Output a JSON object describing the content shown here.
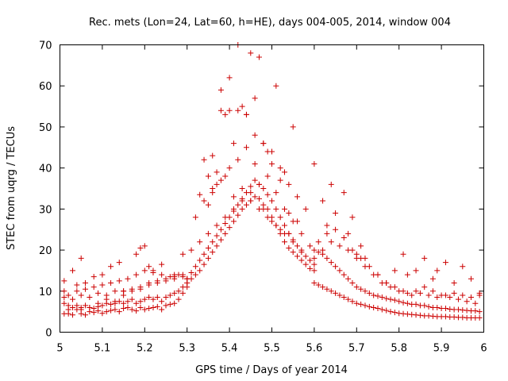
{
  "chart_data": {
    "type": "scatter",
    "title": "Rec. mets (Lon=24, Lat=60, h=HE), days 004-005, 2014, window 004",
    "xlabel": "GPS time / Days of year 2014",
    "ylabel": "STEC from uqrg / TECUs",
    "xlim": [
      5,
      6
    ],
    "ylim": [
      0,
      70
    ],
    "x_ticks": [
      5,
      5.1,
      5.2,
      5.3,
      5.4,
      5.5,
      5.6,
      5.7,
      5.8,
      5.9,
      6
    ],
    "x_tick_labels": [
      "5",
      "5.1",
      "5.2",
      "5.3",
      "5.4",
      "5.5",
      "5.6",
      "5.7",
      "5.8",
      "5.9",
      "6"
    ],
    "y_ticks": [
      0,
      10,
      20,
      30,
      40,
      50,
      60,
      70
    ],
    "y_tick_labels": [
      "0",
      "10",
      "20",
      "30",
      "40",
      "50",
      "60",
      "70"
    ],
    "grid": false,
    "marker": "plus",
    "marker_color": "#cc0000",
    "series": [
      {
        "x": [
          5.01,
          5.02,
          5.03,
          5.04,
          5.05,
          5.06,
          5.07,
          5.08,
          5.09,
          5.1,
          5.11,
          5.12,
          5.13,
          5.14,
          5.15,
          5.16,
          5.17,
          5.18,
          5.19,
          5.2,
          5.21,
          5.22,
          5.23,
          5.24,
          5.25,
          5.26,
          5.27,
          5.28,
          5.29,
          5.3,
          5.01,
          5.02,
          5.03,
          5.04,
          5.05,
          5.06,
          5.07,
          5.08,
          5.09,
          5.1,
          5.11,
          5.12,
          5.13,
          5.14,
          5.15,
          5.16,
          5.17,
          5.18,
          5.19,
          5.2,
          5.21,
          5.22,
          5.23,
          5.24,
          5.25,
          5.26,
          5.27,
          5.28,
          5.29,
          5.3,
          5.01,
          5.03,
          5.05,
          5.07,
          5.09,
          5.11,
          5.13,
          5.15,
          5.17,
          5.19,
          5.21,
          5.23,
          5.25,
          5.27,
          5.29,
          5.01,
          5.02,
          5.04,
          5.06,
          5.08,
          5.1,
          5.12,
          5.14,
          5.16,
          5.18,
          5.2,
          5.22,
          5.24,
          5.26,
          5.28,
          5.3,
          5.01,
          5.03,
          5.04,
          5.05,
          5.06,
          5.08,
          5.1,
          5.12,
          5.14,
          5.15,
          5.18,
          5.19,
          5.2,
          5.21,
          5.22,
          5.24,
          5.27,
          5.29,
          5.02,
          5.05,
          5.07,
          5.09,
          5.11,
          5.13,
          5.15,
          5.17,
          5.19,
          5.21,
          5.23,
          5.25,
          5.27,
          5.29
        ],
        "y": [
          4.5,
          4.5,
          4.2,
          5.5,
          4.5,
          4.2,
          5.0,
          4.8,
          5.2,
          4.6,
          5.0,
          5.3,
          5.5,
          5.0,
          5.8,
          6.0,
          5.5,
          5.2,
          6.0,
          5.5,
          5.8,
          6.0,
          6.2,
          5.5,
          6.5,
          6.8,
          7.0,
          8.0,
          9.5,
          11,
          7,
          6.5,
          6,
          6.5,
          6,
          6.5,
          6,
          5.8,
          6.2,
          6.5,
          7,
          6.8,
          7,
          7.5,
          7,
          7.5,
          8,
          7,
          7.5,
          8,
          8.5,
          8,
          8.5,
          7.5,
          8.5,
          9,
          9.5,
          10,
          11,
          12,
          8.5,
          8,
          9,
          8.5,
          9.5,
          9,
          10,
          10,
          10.5,
          11,
          12,
          12,
          12.5,
          13,
          13.5,
          10,
          9,
          10,
          10.5,
          11,
          11.5,
          12,
          12.5,
          13,
          14,
          15,
          14.5,
          14,
          13.5,
          14,
          13,
          12.5,
          15,
          11.5,
          18,
          12,
          13.5,
          14,
          16,
          17,
          10,
          19,
          20.5,
          21,
          16,
          15,
          16.5,
          14,
          19,
          5.5,
          5.5,
          6,
          7,
          8,
          7.5,
          9,
          10,
          10.5,
          11.5,
          12.5,
          13,
          13.5,
          14
        ],
        "comment": ""
      },
      {
        "x": [
          5.3,
          5.31,
          5.32,
          5.33,
          5.34,
          5.35,
          5.36,
          5.37,
          5.38,
          5.39,
          5.4,
          5.41,
          5.42,
          5.43,
          5.44,
          5.45,
          5.46,
          5.47,
          5.48,
          5.49,
          5.5,
          5.51,
          5.52,
          5.53,
          5.54,
          5.55,
          5.56,
          5.57,
          5.58,
          5.59,
          5.6,
          5.3,
          5.31,
          5.32,
          5.33,
          5.34,
          5.35,
          5.36,
          5.37,
          5.38,
          5.39,
          5.4,
          5.41,
          5.42,
          5.43,
          5.44,
          5.45,
          5.46,
          5.47,
          5.48,
          5.49,
          5.5,
          5.51,
          5.52,
          5.53,
          5.54,
          5.55,
          5.56,
          5.57,
          5.58,
          5.59,
          5.6,
          5.31,
          5.33,
          5.35,
          5.37,
          5.39,
          5.41,
          5.43,
          5.45,
          5.47,
          5.49,
          5.51,
          5.53,
          5.55,
          5.57,
          5.59,
          5.32,
          5.34,
          5.36,
          5.38,
          5.4,
          5.42,
          5.44,
          5.46,
          5.48,
          5.5,
          5.52,
          5.54,
          5.56,
          5.58,
          5.33,
          5.35,
          5.37,
          5.39,
          5.41,
          5.43,
          5.45,
          5.47,
          5.49,
          5.51,
          5.53,
          5.55,
          5.57,
          5.34,
          5.36,
          5.38,
          5.4,
          5.42,
          5.44,
          5.46,
          5.48,
          5.5,
          5.52,
          5.54,
          5.56,
          5.35,
          5.37,
          5.39,
          5.41,
          5.43,
          5.45,
          5.47,
          5.49,
          5.51,
          5.53,
          5.55,
          5.36,
          5.38,
          5.4,
          5.42,
          5.44,
          5.46,
          5.48,
          5.5,
          5.52,
          5.54
        ],
        "y": [
          12,
          13,
          14,
          15,
          16.5,
          18,
          19.5,
          21,
          22.5,
          24,
          25.5,
          27,
          28.5,
          30,
          31,
          32,
          33,
          32.5,
          31,
          30,
          28,
          26,
          24,
          22,
          20.5,
          19.5,
          18.5,
          17.5,
          16.5,
          15.5,
          15,
          13,
          14.5,
          16,
          17.5,
          19,
          20.5,
          22,
          23.5,
          25,
          26.5,
          28,
          29.5,
          31,
          32.5,
          34,
          35.5,
          37,
          36,
          35,
          33.5,
          32,
          30,
          28,
          26,
          24,
          22.5,
          21,
          19.5,
          18.5,
          17.5,
          16.5,
          20,
          22,
          24,
          26,
          28,
          30,
          32,
          34,
          36,
          38,
          34,
          30,
          27,
          24,
          21,
          28,
          32,
          35,
          37,
          40,
          42,
          45,
          48,
          46,
          44,
          40,
          36,
          33,
          30,
          33.5,
          31,
          36,
          38,
          33,
          35,
          32,
          30,
          28,
          26,
          24,
          22,
          20,
          42,
          43,
          54,
          54,
          54,
          53,
          57,
          46,
          41,
          37,
          29,
          27,
          38,
          39,
          53,
          46,
          55,
          68,
          67,
          44,
          60,
          39,
          50,
          34,
          59,
          62,
          70,
          53,
          41,
          30,
          27,
          25,
          24
        ],
        "comment": ""
      },
      {
        "x": [
          5.6,
          5.61,
          5.62,
          5.63,
          5.64,
          5.65,
          5.66,
          5.67,
          5.68,
          5.69,
          5.7,
          5.71,
          5.72,
          5.73,
          5.74,
          5.75,
          5.76,
          5.77,
          5.78,
          5.79,
          5.8,
          5.81,
          5.82,
          5.83,
          5.84,
          5.85,
          5.86,
          5.87,
          5.88,
          5.89,
          5.9,
          5.91,
          5.92,
          5.93,
          5.94,
          5.95,
          5.96,
          5.97,
          5.98,
          5.99,
          5.6,
          5.61,
          5.62,
          5.63,
          5.64,
          5.65,
          5.66,
          5.67,
          5.68,
          5.69,
          5.7,
          5.71,
          5.72,
          5.73,
          5.74,
          5.75,
          5.76,
          5.77,
          5.78,
          5.79,
          5.8,
          5.81,
          5.82,
          5.83,
          5.84,
          5.85,
          5.86,
          5.87,
          5.88,
          5.89,
          5.9,
          5.91,
          5.92,
          5.93,
          5.94,
          5.95,
          5.96,
          5.97,
          5.98,
          5.99,
          5.61,
          5.63,
          5.65,
          5.67,
          5.69,
          5.71,
          5.73,
          5.75,
          5.77,
          5.79,
          5.81,
          5.83,
          5.85,
          5.87,
          5.89,
          5.91,
          5.93,
          5.95,
          5.97,
          5.99,
          5.6,
          5.62,
          5.64,
          5.66,
          5.68,
          5.7,
          5.72,
          5.74,
          5.76,
          5.78,
          5.8,
          5.82,
          5.84,
          5.86,
          5.88,
          5.9,
          5.92,
          5.94,
          5.96,
          5.98,
          5.6,
          5.62,
          5.63,
          5.64,
          5.65,
          5.67,
          5.68,
          5.69,
          5.7,
          5.71,
          5.72,
          5.75,
          5.77,
          5.79,
          5.81,
          5.82,
          5.84,
          5.86,
          5.88,
          5.89,
          5.91,
          5.93,
          5.95,
          5.97,
          5.99
        ],
        "y": [
          12,
          11.5,
          11,
          10.5,
          10,
          9.5,
          9,
          8.5,
          8,
          7.5,
          7,
          6.8,
          6.5,
          6.2,
          6,
          5.8,
          5.5,
          5.3,
          5,
          4.8,
          4.6,
          4.5,
          4.4,
          4.3,
          4.2,
          4.1,
          4.0,
          4.0,
          3.9,
          3.8,
          3.8,
          3.8,
          3.7,
          3.7,
          3.6,
          3.6,
          3.5,
          3.5,
          3.5,
          3.5,
          20,
          19.5,
          19,
          18,
          17,
          16,
          15,
          14,
          13,
          12,
          11,
          10.5,
          10,
          9.5,
          9,
          8.8,
          8.5,
          8.2,
          8,
          7.8,
          7.5,
          7.2,
          7,
          6.8,
          6.8,
          6.5,
          6.5,
          6.2,
          6,
          6,
          5.8,
          5.8,
          5.6,
          5.5,
          5.5,
          5.4,
          5.3,
          5.2,
          5.2,
          5,
          22,
          24,
          25,
          23,
          20,
          18,
          16,
          14,
          12,
          11,
          10,
          9,
          9.5,
          9,
          8.5,
          9,
          9.5,
          9,
          8.5,
          9,
          18,
          20,
          22,
          21,
          20,
          18,
          16,
          14,
          12,
          11,
          10,
          9.5,
          10,
          11,
          10,
          9,
          8.5,
          8,
          7.5,
          7,
          41,
          32,
          26,
          36,
          29,
          34,
          24,
          28,
          19,
          21,
          18,
          14,
          12,
          15,
          19,
          14,
          15,
          18,
          13,
          15,
          17,
          12,
          16,
          13,
          9.5
        ],
        "comment": ""
      }
    ]
  }
}
